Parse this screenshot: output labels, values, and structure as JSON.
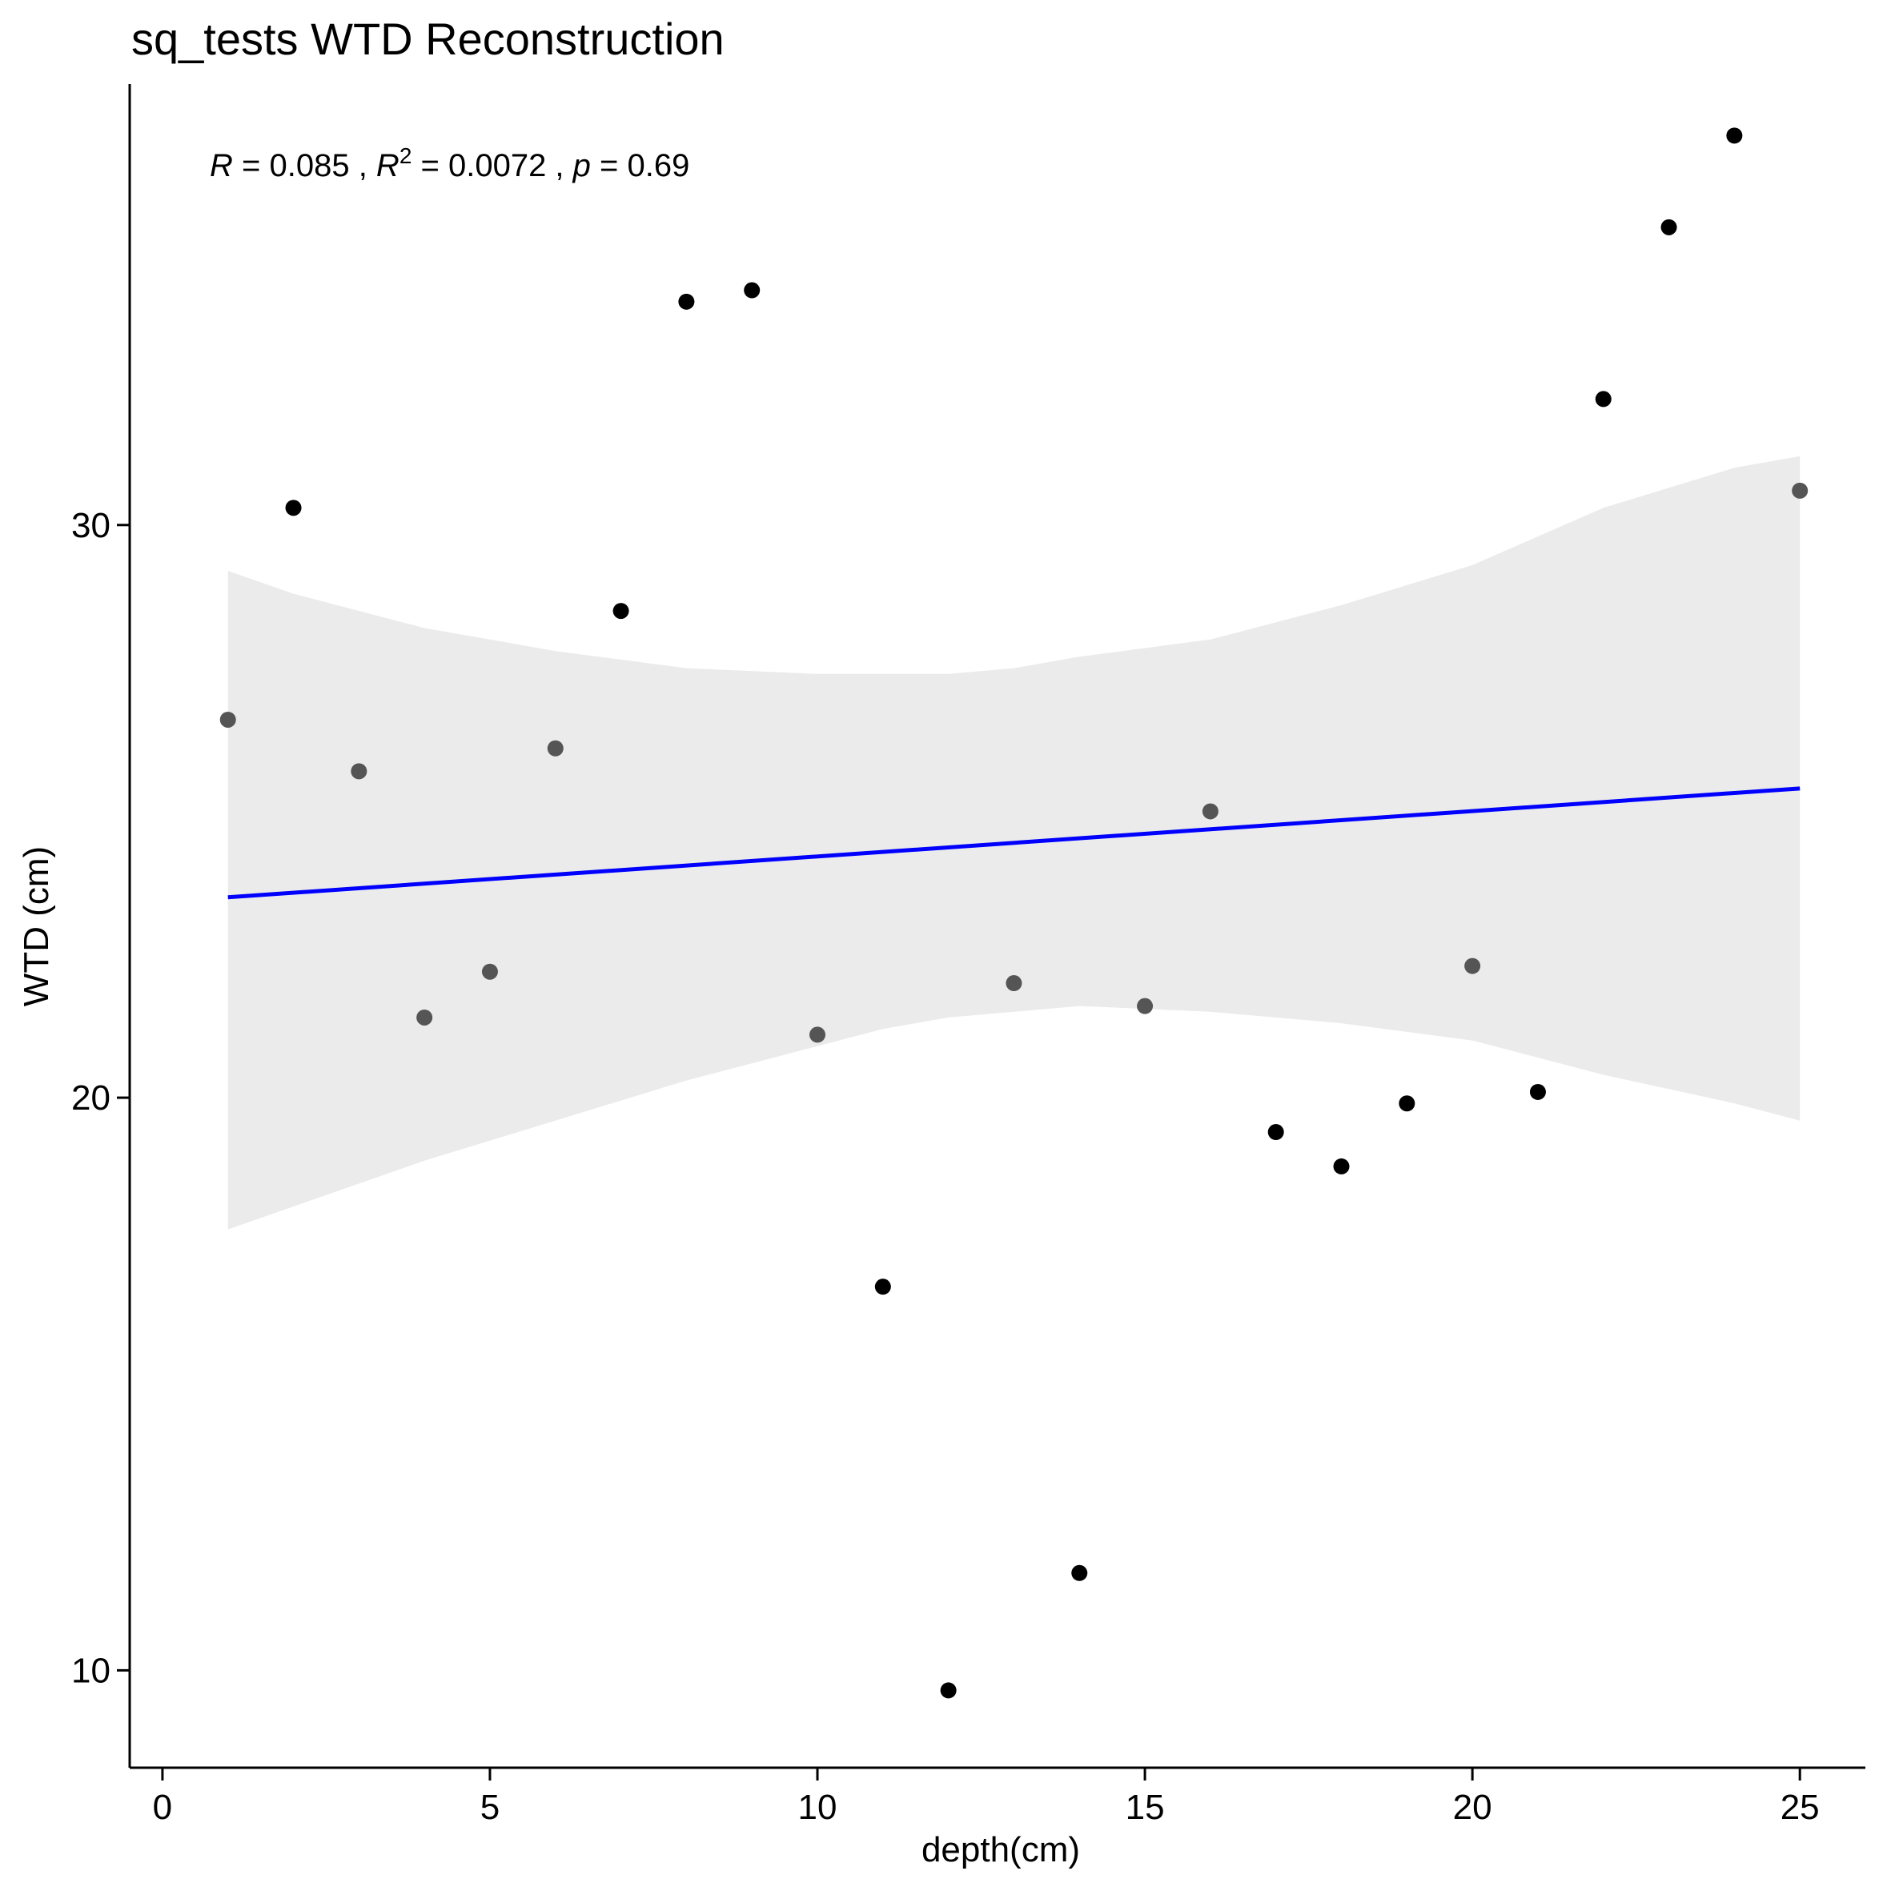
{
  "chart_data": {
    "type": "scatter",
    "title": "sq_tests WTD Reconstruction",
    "xlabel": "depth(cm)",
    "ylabel": "WTD (cm)",
    "xlim": [
      -0.5,
      26
    ],
    "ylim": [
      8.3,
      37.7
    ],
    "x_ticks": [
      0,
      5,
      10,
      15,
      20,
      25
    ],
    "y_ticks": [
      10,
      20,
      30
    ],
    "grid": false,
    "annotation": {
      "r_label": "R",
      "r_value": " = 0.085 , ",
      "r2_label": "R",
      "r2_sup": "2",
      "r2_value": " = 0.0072 , ",
      "p_label": "p",
      "p_value": " = 0.69"
    },
    "points": [
      {
        "x": 1,
        "y": 26.6,
        "color": "#555555"
      },
      {
        "x": 2,
        "y": 30.3,
        "color": "#000000"
      },
      {
        "x": 3,
        "y": 25.7,
        "color": "#555555"
      },
      {
        "x": 4,
        "y": 21.4,
        "color": "#555555"
      },
      {
        "x": 5,
        "y": 22.2,
        "color": "#555555"
      },
      {
        "x": 6,
        "y": 26.1,
        "color": "#555555"
      },
      {
        "x": 7,
        "y": 28.5,
        "color": "#000000"
      },
      {
        "x": 8,
        "y": 33.9,
        "color": "#000000"
      },
      {
        "x": 9,
        "y": 34.1,
        "color": "#000000"
      },
      {
        "x": 10,
        "y": 21.1,
        "color": "#555555"
      },
      {
        "x": 11,
        "y": 16.7,
        "color": "#000000"
      },
      {
        "x": 12,
        "y": 9.65,
        "color": "#000000"
      },
      {
        "x": 13,
        "y": 22.0,
        "color": "#555555"
      },
      {
        "x": 14,
        "y": 11.7,
        "color": "#000000"
      },
      {
        "x": 15,
        "y": 21.6,
        "color": "#555555"
      },
      {
        "x": 16,
        "y": 25.0,
        "color": "#555555"
      },
      {
        "x": 17,
        "y": 19.4,
        "color": "#000000"
      },
      {
        "x": 18,
        "y": 18.8,
        "color": "#000000"
      },
      {
        "x": 19,
        "y": 19.9,
        "color": "#000000"
      },
      {
        "x": 20,
        "y": 22.3,
        "color": "#555555"
      },
      {
        "x": 21,
        "y": 20.1,
        "color": "#000000"
      },
      {
        "x": 22,
        "y": 32.2,
        "color": "#000000"
      },
      {
        "x": 23,
        "y": 35.2,
        "color": "#000000"
      },
      {
        "x": 24,
        "y": 36.8,
        "color": "#000000"
      },
      {
        "x": 25,
        "y": 30.6,
        "color": "#555555"
      }
    ],
    "fit_line": {
      "x": [
        1,
        25
      ],
      "y": [
        23.5,
        25.4
      ],
      "color": "#0000ff"
    },
    "confidence_band": {
      "color": "#ebebeb",
      "x": [
        1,
        2,
        4,
        6,
        8,
        10,
        11,
        12,
        13,
        14,
        16,
        18,
        20,
        22,
        24,
        25
      ],
      "upper": [
        29.2,
        28.8,
        28.2,
        27.8,
        27.5,
        27.4,
        27.4,
        27.4,
        27.5,
        27.7,
        28.0,
        28.6,
        29.3,
        30.3,
        31.0,
        31.2
      ],
      "lower": [
        17.7,
        18.1,
        18.9,
        19.6,
        20.3,
        20.9,
        21.2,
        21.4,
        21.5,
        21.6,
        21.5,
        21.3,
        21.0,
        20.4,
        19.9,
        19.6
      ]
    },
    "colors": {
      "fit_line": "#0000ff",
      "band": "#ebebeb",
      "point_dark": "#000000",
      "point_gray": "#555555"
    }
  }
}
